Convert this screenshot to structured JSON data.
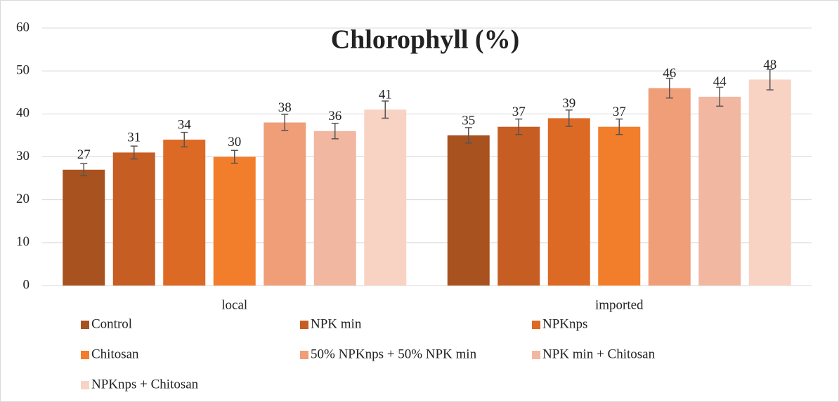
{
  "chart_data": {
    "type": "bar",
    "title": "Chlorophyll (%)",
    "categories": [
      "local",
      "imported"
    ],
    "series": [
      {
        "name": "Control",
        "color": "#a8521f",
        "values": [
          27,
          35
        ],
        "errors": [
          1.4,
          1.8
        ]
      },
      {
        "name": "NPK min",
        "color": "#c65d23",
        "values": [
          31,
          37
        ],
        "errors": [
          1.5,
          1.8
        ]
      },
      {
        "name": "NPKnps",
        "color": "#dd6a24",
        "values": [
          34,
          39
        ],
        "errors": [
          1.7,
          1.9
        ]
      },
      {
        "name": "Chitosan",
        "color": "#f27d2a",
        "values": [
          30,
          37
        ],
        "errors": [
          1.5,
          1.8
        ]
      },
      {
        "name": "50% NPKnps + 50% NPK min",
        "color": "#ef9e78",
        "values": [
          38,
          46
        ],
        "errors": [
          1.9,
          2.3
        ]
      },
      {
        "name": "NPK min + Chitosan",
        "color": "#f1b7a0",
        "values": [
          36,
          44
        ],
        "errors": [
          1.8,
          2.2
        ]
      },
      {
        "name": "NPKnps + Chitosan",
        "color": "#f8d3c4",
        "values": [
          41,
          48
        ],
        "errors": [
          2.0,
          2.4
        ]
      }
    ],
    "ylim": [
      0,
      60
    ],
    "yticks": [
      0,
      10,
      20,
      30,
      40,
      50,
      60
    ],
    "grid": true,
    "legend": "bottom"
  }
}
